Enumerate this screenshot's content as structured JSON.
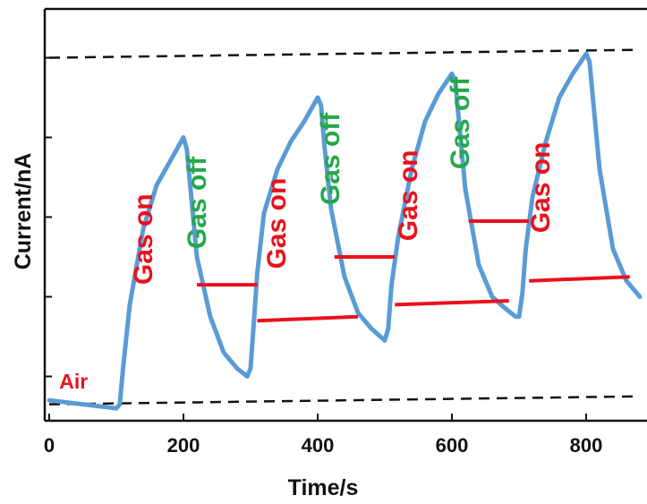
{
  "chart_data": {
    "type": "line",
    "title": "",
    "xlabel": "Time/s",
    "ylabel": "Current/nA",
    "xlim": [
      0,
      880
    ],
    "ylim": [
      0,
      1
    ],
    "x_ticks": [
      "0",
      "200",
      "400",
      "600",
      "800"
    ],
    "x_tick_values": [
      0,
      200,
      400,
      600,
      800
    ],
    "y_ticks_labeled": false,
    "y_tick_values": [
      0.1,
      0.3,
      0.5,
      0.7,
      0.9
    ],
    "series": [
      {
        "color": "#5B9BD5",
        "x": [
          0,
          50,
          100,
          105,
          110,
          120,
          140,
          160,
          180,
          200,
          205,
          210,
          220,
          240,
          260,
          280,
          295,
          300,
          305,
          310,
          320,
          340,
          360,
          380,
          400,
          405,
          410,
          420,
          440,
          460,
          480,
          500,
          505,
          510,
          520,
          540,
          560,
          580,
          600,
          605,
          610,
          620,
          640,
          660,
          680,
          695,
          700,
          705,
          710,
          720,
          740,
          760,
          780,
          800,
          805,
          810,
          820,
          840,
          860,
          880
        ],
        "y": [
          0.04,
          0.03,
          0.02,
          0.03,
          0.12,
          0.28,
          0.47,
          0.58,
          0.64,
          0.7,
          0.67,
          0.58,
          0.4,
          0.25,
          0.16,
          0.12,
          0.1,
          0.12,
          0.24,
          0.36,
          0.51,
          0.62,
          0.69,
          0.74,
          0.8,
          0.78,
          0.68,
          0.52,
          0.35,
          0.26,
          0.22,
          0.19,
          0.22,
          0.33,
          0.45,
          0.62,
          0.74,
          0.81,
          0.86,
          0.84,
          0.75,
          0.57,
          0.38,
          0.3,
          0.27,
          0.25,
          0.25,
          0.31,
          0.42,
          0.55,
          0.69,
          0.8,
          0.86,
          0.91,
          0.89,
          0.8,
          0.62,
          0.42,
          0.34,
          0.3
        ]
      }
    ],
    "reference_lines": [
      {
        "style": "dashed",
        "color": "#111111",
        "x": [
          0,
          880
        ],
        "y": [
          0.03,
          0.05
        ]
      },
      {
        "style": "dashed",
        "color": "#111111",
        "x": [
          0,
          880
        ],
        "y": [
          0.9,
          0.92
        ]
      }
    ],
    "segments": [
      {
        "color": "#E8121C",
        "x": [
          220,
          310
        ],
        "y": [
          0.33,
          0.33
        ]
      },
      {
        "color": "#E8121C",
        "x": [
          310,
          460
        ],
        "y": [
          0.24,
          0.25
        ]
      },
      {
        "color": "#E8121C",
        "x": [
          425,
          515
        ],
        "y": [
          0.4,
          0.4
        ]
      },
      {
        "color": "#E8121C",
        "x": [
          515,
          685
        ],
        "y": [
          0.28,
          0.29
        ]
      },
      {
        "color": "#E8121C",
        "x": [
          625,
          715
        ],
        "y": [
          0.49,
          0.49
        ]
      },
      {
        "color": "#E8121C",
        "x": [
          715,
          865
        ],
        "y": [
          0.34,
          0.35
        ]
      }
    ],
    "annotations": [
      {
        "text": "Air",
        "color": "#E8121C",
        "x": 15,
        "y": 0.07,
        "rotate": false,
        "size": "small"
      },
      {
        "text": "Gas on",
        "color": "#E8121C",
        "x": 153,
        "y": 0.33,
        "rotate": true,
        "size": "large"
      },
      {
        "text": "Gas off",
        "color": "#22A84A",
        "x": 233,
        "y": 0.42,
        "rotate": true,
        "size": "large"
      },
      {
        "text": "Gas on",
        "color": "#E8121C",
        "x": 352,
        "y": 0.37,
        "rotate": true,
        "size": "large"
      },
      {
        "text": "Gas off",
        "color": "#22A84A",
        "x": 432,
        "y": 0.53,
        "rotate": true,
        "size": "large"
      },
      {
        "text": "Gas on",
        "color": "#E8121C",
        "x": 548,
        "y": 0.44,
        "rotate": true,
        "size": "large"
      },
      {
        "text": "Gas off",
        "color": "#22A84A",
        "x": 625,
        "y": 0.62,
        "rotate": true,
        "size": "large"
      },
      {
        "text": "Gas on",
        "color": "#E8121C",
        "x": 745,
        "y": 0.46,
        "rotate": true,
        "size": "large"
      }
    ],
    "grid": false,
    "legend": "none"
  }
}
